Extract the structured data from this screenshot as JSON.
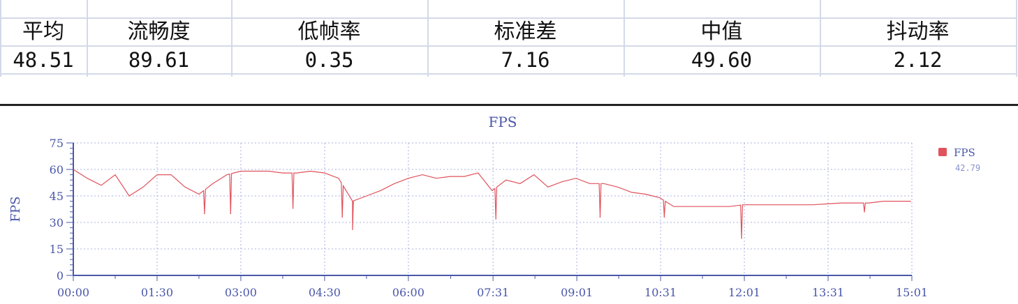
{
  "stats": {
    "headers": [
      "平均",
      "流畅度",
      "低帧率",
      "标准差",
      "中值",
      "抖动率"
    ],
    "values": [
      "48.51",
      "89.61",
      "0.35",
      "7.16",
      "49.60",
      "2.12"
    ]
  },
  "chart_data": {
    "type": "line",
    "title": "FPS",
    "ylabel": "FPS",
    "xlabel": "",
    "ylim": [
      0,
      75
    ],
    "yticks": [
      "0",
      "15",
      "30",
      "45",
      "60",
      "75"
    ],
    "xticks": [
      "00:00",
      "01:30",
      "03:00",
      "04:30",
      "06:00",
      "07:31",
      "09:01",
      "10:31",
      "12:01",
      "13:31",
      "15:01"
    ],
    "grid": true,
    "legend_placement": "right",
    "colors": {
      "series": "#e0525c",
      "axis": "#4a57a8",
      "grid": "#a8b0e0"
    },
    "series": [
      {
        "name": "FPS",
        "legend_value": "42.79",
        "step_seconds": 15,
        "values": [
          60,
          55,
          51,
          57,
          45,
          50,
          57,
          57,
          50,
          46,
          52,
          57,
          59,
          59,
          59,
          58,
          58,
          59,
          58,
          55,
          42,
          45,
          48,
          52,
          55,
          57,
          55,
          56,
          56,
          58,
          48,
          54,
          52,
          57,
          50,
          53,
          55,
          52,
          52,
          50,
          47,
          46,
          44,
          39,
          39,
          39,
          39,
          39,
          40,
          40,
          40,
          40,
          40,
          40,
          40.5,
          41,
          41,
          41,
          42,
          42,
          42
        ],
        "dips": [
          {
            "t": "02:21",
            "fps": 35
          },
          {
            "t": "02:49",
            "fps": 35
          },
          {
            "t": "03:56",
            "fps": 38
          },
          {
            "t": "04:49",
            "fps": 33
          },
          {
            "t": "05:00",
            "fps": 26
          },
          {
            "t": "07:34",
            "fps": 32
          },
          {
            "t": "09:26",
            "fps": 33
          },
          {
            "t": "10:35",
            "fps": 33
          },
          {
            "t": "11:58",
            "fps": 21
          },
          {
            "t": "14:10",
            "fps": 36
          }
        ]
      }
    ]
  }
}
